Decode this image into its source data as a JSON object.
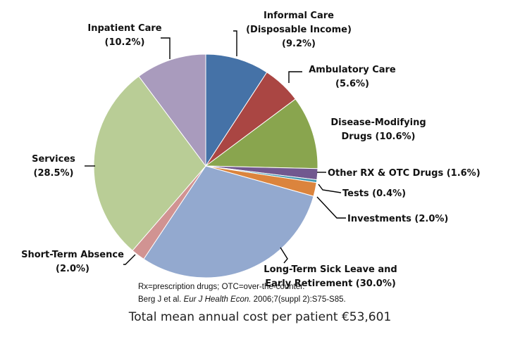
{
  "chart_data": {
    "type": "pie",
    "title": "",
    "unit": "%",
    "start": "12 o'clock, clockwise",
    "slices": [
      {
        "lines": [
          "Informal Care",
          "(Disposable Income)",
          "(9.2%)"
        ],
        "value": 9.2,
        "color": "#4572A7"
      },
      {
        "lines": [
          "Ambulatory Care",
          "(5.6%)"
        ],
        "value": 5.6,
        "color": "#AA4643"
      },
      {
        "lines": [
          "Disease-Modifying",
          "Drugs (10.6%)"
        ],
        "value": 10.6,
        "color": "#89A54E"
      },
      {
        "lines": [
          "Other RX & OTC Drugs (1.6%)"
        ],
        "value": 1.6,
        "color": "#71588F"
      },
      {
        "lines": [
          "Tests (0.4%)"
        ],
        "value": 0.4,
        "color": "#4198AF"
      },
      {
        "lines": [
          "Investments (2.0%)"
        ],
        "value": 2.0,
        "color": "#DB843D"
      },
      {
        "lines": [
          "Long-Term Sick Leave and",
          "Early Retirement (30.0%)"
        ],
        "value": 30.0,
        "color": "#93A9CF"
      },
      {
        "lines": [
          "Short-Term Absence",
          "(2.0%)"
        ],
        "value": 2.0,
        "color": "#D19392"
      },
      {
        "lines": [
          "Services",
          "(28.5%)"
        ],
        "value": 28.5,
        "color": "#B9CD96"
      },
      {
        "lines": [
          "Inpatient Care",
          "(10.2%)"
        ],
        "value": 10.2,
        "color": "#A99BBD"
      }
    ]
  },
  "notes": {
    "abbreviations": "Rx=prescription drugs; OTC=over-the-counter.",
    "citation_author": "Berg J et al. ",
    "citation_journal": "Eur J Health Econ.",
    "citation_rest": " 2006;7(suppl 2):S75-S85."
  },
  "footer": {
    "total": "Total mean annual cost per patient €53,601"
  }
}
